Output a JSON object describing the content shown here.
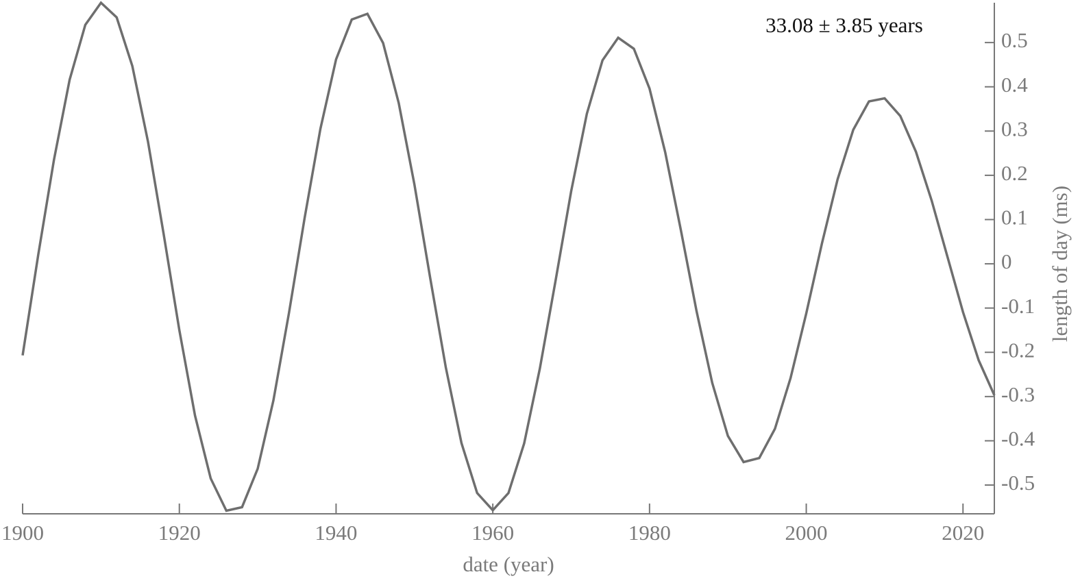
{
  "chart_data": {
    "type": "line",
    "annotation": "33.08 ± 3.85 years",
    "xlabel": "date (year)",
    "ylabel": "length of day (ms)",
    "color": "#6e6e6e",
    "x": [
      1900,
      1902,
      1904,
      1906,
      1908,
      1910,
      1912,
      1914,
      1916,
      1918,
      1920,
      1922,
      1924,
      1926,
      1928,
      1930,
      1932,
      1934,
      1936,
      1938,
      1940,
      1942,
      1944,
      1946,
      1948,
      1950,
      1952,
      1954,
      1956,
      1958,
      1960,
      1962,
      1964,
      1966,
      1968,
      1970,
      1972,
      1974,
      1976,
      1978,
      1980,
      1982,
      1984,
      1986,
      1988,
      1990,
      1992,
      1994,
      1996,
      1998,
      2000,
      2002,
      2004,
      2006,
      2008,
      2010,
      2012,
      2014,
      2016,
      2018,
      2020,
      2022,
      2024
    ],
    "values": [
      -0.207,
      0.021,
      0.235,
      0.416,
      0.54,
      0.59,
      0.557,
      0.447,
      0.276,
      0.067,
      -0.15,
      -0.343,
      -0.485,
      -0.558,
      -0.55,
      -0.463,
      -0.309,
      -0.11,
      0.105,
      0.305,
      0.462,
      0.552,
      0.565,
      0.499,
      0.363,
      0.179,
      -0.031,
      -0.234,
      -0.405,
      -0.518,
      -0.557,
      -0.518,
      -0.406,
      -0.237,
      -0.039,
      0.164,
      0.339,
      0.46,
      0.511,
      0.486,
      0.396,
      0.252,
      0.076,
      -0.107,
      -0.269,
      -0.389,
      -0.448,
      -0.439,
      -0.373,
      -0.258,
      -0.112,
      0.046,
      0.191,
      0.303,
      0.367,
      0.374,
      0.334,
      0.253,
      0.143,
      0.017,
      -0.109,
      -0.218,
      -0.297
    ],
    "xlim": [
      1900,
      2024
    ],
    "ylim": [
      -0.565,
      0.59
    ],
    "xticks": [
      1900,
      1920,
      1940,
      1960,
      1980,
      2000,
      2020
    ],
    "yticks": [
      -0.5,
      -0.4,
      -0.3,
      -0.2,
      -0.1,
      0,
      0.1,
      0.2,
      0.3,
      0.4,
      0.5
    ],
    "y_axis_side": "right"
  }
}
